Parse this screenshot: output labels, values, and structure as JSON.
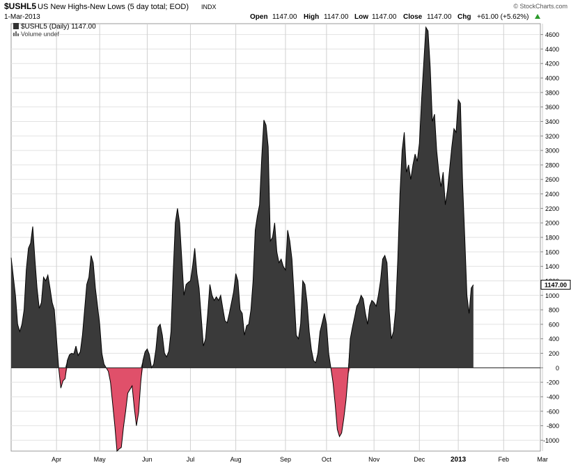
{
  "header": {
    "symbol": "$USHL5",
    "description": "US New Highs-New Lows (5 day total; EOD)",
    "exchange": "INDX",
    "date": "1-Mar-2013",
    "watermark": "© StockCharts.com",
    "quote": {
      "open_label": "Open",
      "open": "1147.00",
      "high_label": "High",
      "high": "1147.00",
      "low_label": "Low",
      "low": "1147.00",
      "close_label": "Close",
      "close": "1147.00",
      "chg_label": "Chg",
      "chg": "+61.00 (+5.62%)"
    },
    "legend_line": "$USHL5 (Daily) 1147.00",
    "volume_line": "Volume undef"
  },
  "chart_data": {
    "type": "area",
    "ylim": [
      -1150,
      4750
    ],
    "yticks": [
      -1000,
      -800,
      -600,
      -400,
      -200,
      0,
      200,
      400,
      600,
      800,
      1000,
      1200,
      1400,
      1600,
      1800,
      2000,
      2200,
      2400,
      2600,
      2800,
      3000,
      3200,
      3400,
      3600,
      3800,
      4000,
      4200,
      4400,
      4600
    ],
    "last_value_label": "1147.00",
    "x_range": [
      0,
      245
    ],
    "months": [
      {
        "label": "Apr",
        "x": 21
      },
      {
        "label": "May",
        "x": 41
      },
      {
        "label": "Jun",
        "x": 63
      },
      {
        "label": "Jul",
        "x": 83
      },
      {
        "label": "Aug",
        "x": 104
      },
      {
        "label": "Sep",
        "x": 127
      },
      {
        "label": "Oct",
        "x": 146
      },
      {
        "label": "Nov",
        "x": 168
      },
      {
        "label": "Dec",
        "x": 189
      },
      {
        "label": "2013",
        "x": 207
      },
      {
        "label": "Feb",
        "x": 228
      },
      {
        "label": "Mar",
        "x": 246
      }
    ],
    "positive_color": "#3a3a3a",
    "negative_color": "#e0506a",
    "points": [
      [
        0,
        1520
      ],
      [
        2,
        1000
      ],
      [
        3,
        600
      ],
      [
        4,
        500
      ],
      [
        5,
        600
      ],
      [
        6,
        800
      ],
      [
        7,
        1350
      ],
      [
        8,
        1650
      ],
      [
        9,
        1720
      ],
      [
        10,
        1950
      ],
      [
        11,
        1500
      ],
      [
        12,
        1100
      ],
      [
        13,
        820
      ],
      [
        14,
        900
      ],
      [
        15,
        1250
      ],
      [
        16,
        1200
      ],
      [
        17,
        1280
      ],
      [
        18,
        1100
      ],
      [
        19,
        900
      ],
      [
        20,
        800
      ],
      [
        21,
        400
      ],
      [
        22,
        0
      ],
      [
        23,
        -280
      ],
      [
        24,
        -180
      ],
      [
        25,
        -150
      ],
      [
        26,
        100
      ],
      [
        27,
        180
      ],
      [
        28,
        200
      ],
      [
        29,
        190
      ],
      [
        30,
        300
      ],
      [
        31,
        170
      ],
      [
        32,
        220
      ],
      [
        33,
        450
      ],
      [
        34,
        800
      ],
      [
        35,
        1150
      ],
      [
        36,
        1250
      ],
      [
        37,
        1550
      ],
      [
        38,
        1450
      ],
      [
        39,
        1100
      ],
      [
        40,
        850
      ],
      [
        41,
        600
      ],
      [
        42,
        200
      ],
      [
        43,
        50
      ],
      [
        44,
        0
      ],
      [
        45,
        -50
      ],
      [
        46,
        -200
      ],
      [
        47,
        -500
      ],
      [
        48,
        -800
      ],
      [
        49,
        -1150
      ],
      [
        50,
        -1120
      ],
      [
        51,
        -1100
      ],
      [
        52,
        -820
      ],
      [
        53,
        -600
      ],
      [
        54,
        -350
      ],
      [
        55,
        -300
      ],
      [
        56,
        -250
      ],
      [
        57,
        -550
      ],
      [
        58,
        -800
      ],
      [
        59,
        -620
      ],
      [
        60,
        -200
      ],
      [
        61,
        100
      ],
      [
        62,
        220
      ],
      [
        63,
        260
      ],
      [
        64,
        180
      ],
      [
        65,
        0
      ],
      [
        66,
        50
      ],
      [
        67,
        250
      ],
      [
        68,
        560
      ],
      [
        69,
        600
      ],
      [
        70,
        450
      ],
      [
        71,
        200
      ],
      [
        72,
        150
      ],
      [
        73,
        230
      ],
      [
        74,
        500
      ],
      [
        75,
        1300
      ],
      [
        76,
        2000
      ],
      [
        77,
        2200
      ],
      [
        78,
        2000
      ],
      [
        79,
        1500
      ],
      [
        80,
        1000
      ],
      [
        81,
        1150
      ],
      [
        82,
        1180
      ],
      [
        83,
        1200
      ],
      [
        84,
        1400
      ],
      [
        85,
        1650
      ],
      [
        86,
        1300
      ],
      [
        87,
        1100
      ],
      [
        88,
        700
      ],
      [
        89,
        300
      ],
      [
        90,
        400
      ],
      [
        91,
        750
      ],
      [
        92,
        1150
      ],
      [
        93,
        1000
      ],
      [
        94,
        930
      ],
      [
        95,
        980
      ],
      [
        96,
        930
      ],
      [
        97,
        1000
      ],
      [
        98,
        820
      ],
      [
        99,
        650
      ],
      [
        100,
        620
      ],
      [
        101,
        750
      ],
      [
        102,
        900
      ],
      [
        103,
        1050
      ],
      [
        104,
        1300
      ],
      [
        105,
        1200
      ],
      [
        106,
        800
      ],
      [
        107,
        750
      ],
      [
        108,
        450
      ],
      [
        109,
        580
      ],
      [
        110,
        600
      ],
      [
        111,
        800
      ],
      [
        112,
        1200
      ],
      [
        113,
        1900
      ],
      [
        114,
        2100
      ],
      [
        115,
        2250
      ],
      [
        116,
        2900
      ],
      [
        117,
        3420
      ],
      [
        118,
        3350
      ],
      [
        119,
        3050
      ],
      [
        120,
        1750
      ],
      [
        121,
        1800
      ],
      [
        122,
        2000
      ],
      [
        123,
        1600
      ],
      [
        124,
        1450
      ],
      [
        125,
        1500
      ],
      [
        126,
        1400
      ],
      [
        127,
        1350
      ],
      [
        128,
        1900
      ],
      [
        129,
        1750
      ],
      [
        130,
        1500
      ],
      [
        131,
        1000
      ],
      [
        132,
        450
      ],
      [
        133,
        400
      ],
      [
        134,
        600
      ],
      [
        135,
        1200
      ],
      [
        136,
        1150
      ],
      [
        137,
        900
      ],
      [
        138,
        500
      ],
      [
        139,
        250
      ],
      [
        140,
        100
      ],
      [
        141,
        70
      ],
      [
        142,
        200
      ],
      [
        143,
        500
      ],
      [
        144,
        620
      ],
      [
        145,
        750
      ],
      [
        146,
        600
      ],
      [
        147,
        200
      ],
      [
        148,
        0
      ],
      [
        149,
        -200
      ],
      [
        150,
        -500
      ],
      [
        151,
        -850
      ],
      [
        152,
        -950
      ],
      [
        153,
        -900
      ],
      [
        154,
        -700
      ],
      [
        155,
        -450
      ],
      [
        156,
        -100
      ],
      [
        157,
        400
      ],
      [
        158,
        560
      ],
      [
        159,
        700
      ],
      [
        160,
        850
      ],
      [
        161,
        900
      ],
      [
        162,
        1000
      ],
      [
        163,
        950
      ],
      [
        164,
        750
      ],
      [
        165,
        600
      ],
      [
        166,
        850
      ],
      [
        167,
        930
      ],
      [
        168,
        900
      ],
      [
        169,
        850
      ],
      [
        170,
        1000
      ],
      [
        171,
        1200
      ],
      [
        172,
        1500
      ],
      [
        173,
        1550
      ],
      [
        174,
        1450
      ],
      [
        175,
        800
      ],
      [
        176,
        400
      ],
      [
        177,
        500
      ],
      [
        178,
        800
      ],
      [
        179,
        1500
      ],
      [
        180,
        2400
      ],
      [
        181,
        3000
      ],
      [
        182,
        3250
      ],
      [
        183,
        2700
      ],
      [
        184,
        2800
      ],
      [
        185,
        2600
      ],
      [
        186,
        2800
      ],
      [
        187,
        2950
      ],
      [
        188,
        2850
      ],
      [
        189,
        3100
      ],
      [
        190,
        3700
      ],
      [
        191,
        4200
      ],
      [
        192,
        4700
      ],
      [
        193,
        4650
      ],
      [
        194,
        4150
      ],
      [
        195,
        3400
      ],
      [
        196,
        3500
      ],
      [
        197,
        3000
      ],
      [
        198,
        2700
      ],
      [
        199,
        2500
      ],
      [
        200,
        2700
      ],
      [
        201,
        2250
      ],
      [
        202,
        2450
      ],
      [
        203,
        2750
      ],
      [
        204,
        3050
      ],
      [
        205,
        3300
      ],
      [
        206,
        3250
      ],
      [
        207,
        3700
      ],
      [
        208,
        3650
      ],
      [
        209,
        2550
      ],
      [
        210,
        1800
      ],
      [
        211,
        1000
      ],
      [
        212,
        750
      ],
      [
        213,
        1100
      ],
      [
        214,
        1147
      ]
    ]
  }
}
